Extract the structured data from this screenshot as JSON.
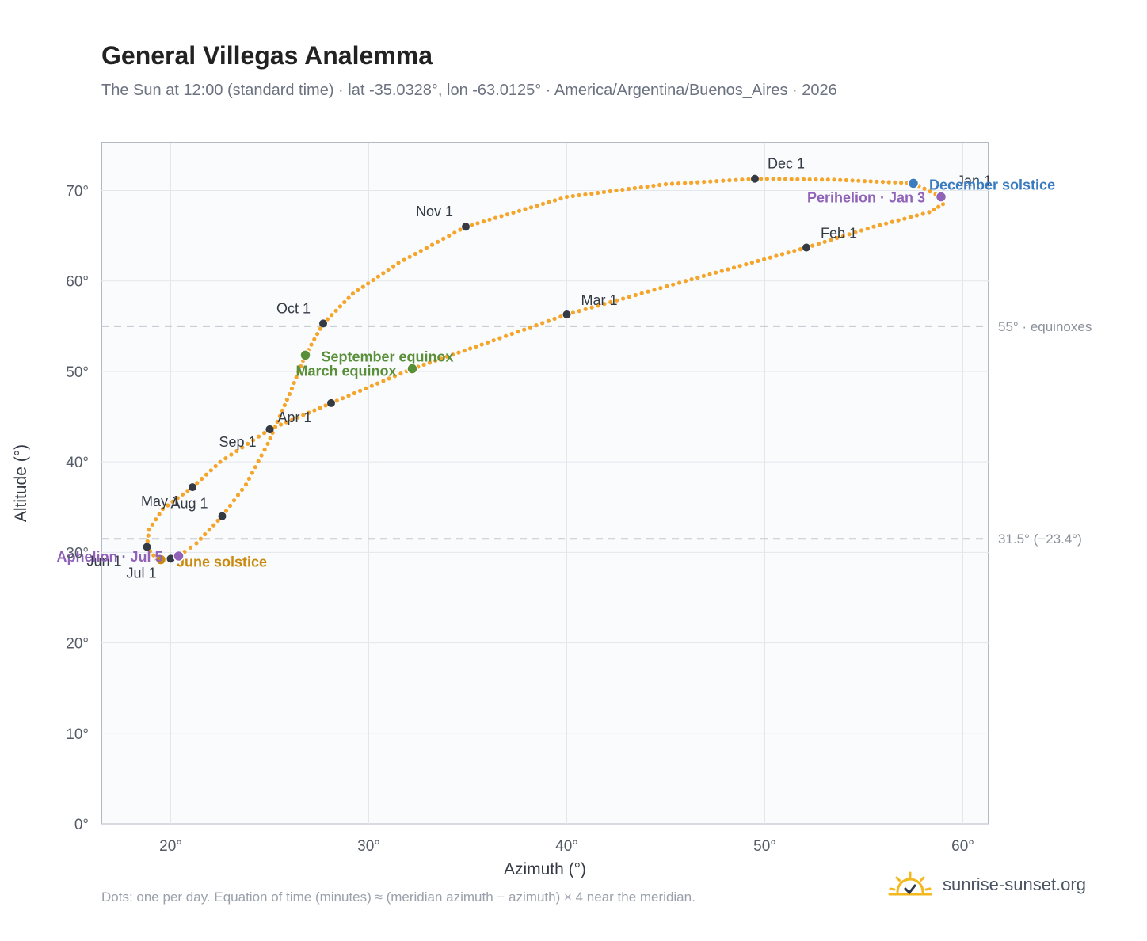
{
  "title": "General Villegas Analemma",
  "subtitle": "The Sun at 12:00 (standard time) · lat -35.0328°, lon -63.0125° · America/Argentina/Buenos_Aires · 2026",
  "footnote": "Dots: one per day. Equation of time (minutes) ≈ (meridian azimuth − azimuth) × 4 near the meridian.",
  "brand": {
    "name": "sunrise-sunset.org",
    "logo_icon": "sun-rise-icon"
  },
  "chart_data": {
    "type": "scatter",
    "xlabel": "Azimuth (°)",
    "ylabel": "Altitude (°)",
    "xlim": [
      16.5,
      61.3
    ],
    "ylim": [
      0,
      75.3
    ],
    "xticks": [
      20,
      30,
      40,
      50,
      60
    ],
    "yticks": [
      0,
      10,
      20,
      30,
      40,
      50,
      60,
      70
    ],
    "tick_suffix": "°",
    "grid": true,
    "colors": {
      "path": "#f4a52a",
      "month_marker": "#333a44",
      "equinox": "#5a8f3a",
      "june_solstice": "#c98a0e",
      "december_solstice": "#3b7bbf",
      "apsis": "#9163b8",
      "reference_line": "#c3c9d1"
    },
    "reference_lines": [
      {
        "y": 55.0,
        "label": "55° · equinoxes"
      },
      {
        "y": 31.5,
        "label": "31.5° (−23.4°)"
      }
    ],
    "path": [
      [
        58.9,
        69.3
      ],
      [
        59.0,
        68.5
      ],
      [
        58.3,
        67.6
      ],
      [
        55.5,
        66.0
      ],
      [
        52.1,
        63.7
      ],
      [
        46.0,
        60.0
      ],
      [
        40.0,
        56.3
      ],
      [
        36.0,
        53.2
      ],
      [
        32.2,
        50.3
      ],
      [
        28.1,
        46.5
      ],
      [
        25.0,
        43.6
      ],
      [
        22.5,
        40.0
      ],
      [
        21.1,
        37.2
      ],
      [
        19.6,
        34.8
      ],
      [
        18.9,
        32.5
      ],
      [
        18.8,
        30.6
      ],
      [
        19.3,
        29.2
      ],
      [
        20.0,
        29.3
      ],
      [
        20.4,
        29.6
      ],
      [
        21.3,
        31.0
      ],
      [
        22.6,
        34.0
      ],
      [
        23.8,
        37.5
      ],
      [
        24.9,
        42.0
      ],
      [
        26.0,
        47.5
      ],
      [
        26.8,
        51.8
      ],
      [
        27.7,
        55.3
      ],
      [
        29.2,
        58.6
      ],
      [
        31.5,
        62.0
      ],
      [
        34.9,
        66.0
      ],
      [
        40.0,
        69.3
      ],
      [
        45.0,
        70.7
      ],
      [
        49.5,
        71.3
      ],
      [
        53.5,
        71.2
      ],
      [
        57.5,
        70.8
      ],
      [
        58.9,
        69.3
      ]
    ],
    "month_markers": [
      {
        "label": "Jan 1",
        "x": 58.9,
        "y": 69.3,
        "dx": 20,
        "dy": -14,
        "anchor": "start"
      },
      {
        "label": "Feb 1",
        "x": 52.1,
        "y": 63.7,
        "dx": 18,
        "dy": -12,
        "anchor": "start"
      },
      {
        "label": "Mar 1",
        "x": 40.0,
        "y": 56.3,
        "dx": 18,
        "dy": -12,
        "anchor": "start"
      },
      {
        "label": "Apr 1",
        "x": 25.0,
        "y": 43.6,
        "dx": 10,
        "dy": -9,
        "anchor": "start"
      },
      {
        "label": "",
        "x": 28.1,
        "y": 46.5,
        "dx": 0,
        "dy": 0,
        "anchor": "start"
      },
      {
        "label": "May 1",
        "x": 21.1,
        "y": 37.2,
        "dx": -16,
        "dy": 24,
        "anchor": "end"
      },
      {
        "label": "Jun 1",
        "x": 18.8,
        "y": 30.6,
        "dx": -32,
        "dy": 24,
        "anchor": "end"
      },
      {
        "label": "Jul 1",
        "x": 20.0,
        "y": 29.3,
        "dx": -18,
        "dy": 24,
        "anchor": "end"
      },
      {
        "label": "Aug 1",
        "x": 22.6,
        "y": 34.0,
        "dx": -18,
        "dy": -10,
        "anchor": "end"
      },
      {
        "label": "Sep 1",
        "x": 25.0,
        "y": 43.6,
        "dx": -17,
        "dy": 22,
        "anchor": "end"
      },
      {
        "label": "Oct 1",
        "x": 27.7,
        "y": 55.3,
        "dx": -16,
        "dy": -13,
        "anchor": "end"
      },
      {
        "label": "Nov 1",
        "x": 34.9,
        "y": 66.0,
        "dx": -16,
        "dy": -13,
        "anchor": "end"
      },
      {
        "label": "Dec 1",
        "x": 49.5,
        "y": 71.3,
        "dx": 16,
        "dy": -13,
        "anchor": "start"
      }
    ],
    "events": [
      {
        "label": "September equinox",
        "x": 26.8,
        "y": 51.8,
        "color_key": "equinox",
        "dx": 20,
        "dy": 8,
        "anchor": "start"
      },
      {
        "label": "March equinox",
        "x": 32.2,
        "y": 50.3,
        "color_key": "equinox",
        "dx": -20,
        "dy": 9,
        "anchor": "end"
      },
      {
        "label": "June solstice",
        "x": 19.5,
        "y": 29.2,
        "color_key": "june_solstice",
        "dx": 20,
        "dy": 9,
        "anchor": "start"
      },
      {
        "label": "December solstice",
        "x": 57.5,
        "y": 70.8,
        "color_key": "december_solstice",
        "dx": 20,
        "dy": 8,
        "anchor": "start"
      },
      {
        "label": "Aphelion · Jul 5",
        "x": 20.4,
        "y": 29.6,
        "color_key": "apsis",
        "dx": -20,
        "dy": 7,
        "anchor": "end"
      },
      {
        "label": "Perihelion · Jan 3",
        "x": 58.9,
        "y": 69.3,
        "color_key": "apsis",
        "dx": -20,
        "dy": 7,
        "anchor": "end"
      }
    ]
  }
}
